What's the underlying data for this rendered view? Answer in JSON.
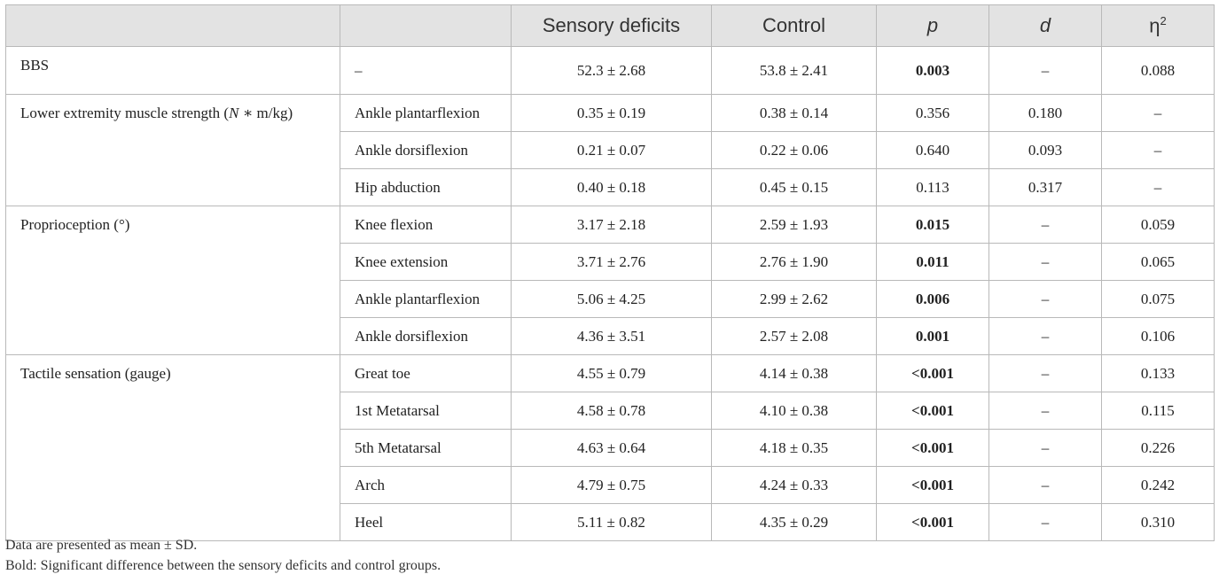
{
  "header": {
    "col0": "",
    "col1": "",
    "col2": "Sensory deficits",
    "col3": "Control",
    "col4": "p",
    "col5": "d",
    "col6_base": "η",
    "col6_sup": "2"
  },
  "groups": {
    "bbs": "BBS",
    "muscle_pre": "Lower extremity muscle strength (",
    "muscle_N": "N",
    "muscle_post": " ∗ m/kg)",
    "proprio": "Proprioception (°)",
    "tactile": "Tactile sensation (gauge)"
  },
  "rows": [
    {
      "sub": "–",
      "sd": "52.3 ± 2.68",
      "ctrl": "53.8 ± 2.41",
      "p": "0.003",
      "d": "–",
      "eta": "0.088"
    },
    {
      "sub": "Ankle plantarflexion",
      "sd": "0.35 ± 0.19",
      "ctrl": "0.38 ± 0.14",
      "p": "0.356",
      "d": "0.180",
      "eta": "–"
    },
    {
      "sub": "Ankle dorsiflexion",
      "sd": "0.21 ± 0.07",
      "ctrl": "0.22 ± 0.06",
      "p": "0.640",
      "d": "0.093",
      "eta": "–"
    },
    {
      "sub": "Hip abduction",
      "sd": "0.40 ± 0.18",
      "ctrl": "0.45 ± 0.15",
      "p": "0.113",
      "d": "0.317",
      "eta": "–"
    },
    {
      "sub": "Knee flexion",
      "sd": "3.17 ± 2.18",
      "ctrl": "2.59 ± 1.93",
      "p": "0.015",
      "d": "–",
      "eta": "0.059"
    },
    {
      "sub": "Knee extension",
      "sd": "3.71 ± 2.76",
      "ctrl": "2.76 ± 1.90",
      "p": "0.011",
      "d": "–",
      "eta": "0.065"
    },
    {
      "sub": "Ankle plantarflexion",
      "sd": "5.06 ± 4.25",
      "ctrl": "2.99 ± 2.62",
      "p": "0.006",
      "d": "–",
      "eta": "0.075"
    },
    {
      "sub": "Ankle dorsiflexion",
      "sd": "4.36 ± 3.51",
      "ctrl": "2.57 ± 2.08",
      "p": "0.001",
      "d": "–",
      "eta": "0.106"
    },
    {
      "sub": "Great toe",
      "sd": "4.55 ± 0.79",
      "ctrl": "4.14 ± 0.38",
      "p": "<0.001",
      "d": "–",
      "eta": "0.133"
    },
    {
      "sub": "1st Metatarsal",
      "sd": "4.58 ± 0.78",
      "ctrl": "4.10 ± 0.38",
      "p": "<0.001",
      "d": "–",
      "eta": "0.115"
    },
    {
      "sub": "5th Metatarsal",
      "sd": "4.63 ± 0.64",
      "ctrl": "4.18 ± 0.35",
      "p": "<0.001",
      "d": "–",
      "eta": "0.226"
    },
    {
      "sub": "Arch",
      "sd": "4.79 ± 0.75",
      "ctrl": "4.24 ± 0.33",
      "p": "<0.001",
      "d": "–",
      "eta": "0.242"
    },
    {
      "sub": "Heel",
      "sd": "5.11 ± 0.82",
      "ctrl": "4.35 ± 0.29",
      "p": "<0.001",
      "d": "–",
      "eta": "0.310"
    }
  ],
  "notes": {
    "line1": "Data are presented as mean ± SD.",
    "line2": "Bold: Significant difference between the sensory deficits and control groups."
  }
}
